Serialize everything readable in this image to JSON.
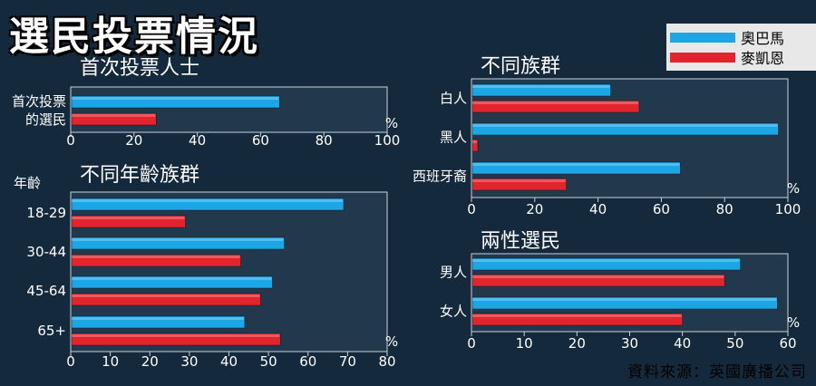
{
  "title": "選民投票情況",
  "legend": [
    {
      "name": "奧巴馬",
      "color": "#1ca6e6"
    },
    {
      "name": "麥凱恩",
      "color": "#e2242c"
    }
  ],
  "source": "資料來源：英國廣播公司",
  "chart_data": [
    {
      "type": "bar",
      "orientation": "horizontal",
      "title": "首次投票人士",
      "categories": [
        "首次投票\n的選民"
      ],
      "series": [
        {
          "name": "奧巴馬",
          "values": [
            66
          ]
        },
        {
          "name": "麥凱恩",
          "values": [
            27
          ]
        }
      ],
      "xlim": [
        0,
        100
      ],
      "ticks": [
        0,
        20,
        40,
        60,
        80,
        100
      ],
      "unit": "%"
    },
    {
      "type": "bar",
      "orientation": "horizontal",
      "title": "不同年齡族群",
      "ylabel": "年齡",
      "categories": [
        "18-29",
        "30-44",
        "45-64",
        "65+"
      ],
      "series": [
        {
          "name": "奧巴馬",
          "values": [
            69,
            54,
            51,
            44
          ]
        },
        {
          "name": "麥凱恩",
          "values": [
            29,
            43,
            48,
            53
          ]
        }
      ],
      "xlim": [
        0,
        80
      ],
      "ticks": [
        0,
        10,
        20,
        30,
        40,
        50,
        60,
        70,
        80
      ],
      "unit": "%"
    },
    {
      "type": "bar",
      "orientation": "horizontal",
      "title": "不同族群",
      "categories": [
        "白人",
        "黑人",
        "西班牙裔"
      ],
      "series": [
        {
          "name": "奧巴馬",
          "values": [
            44,
            97,
            66
          ]
        },
        {
          "name": "麥凱恩",
          "values": [
            53,
            2,
            30
          ]
        }
      ],
      "xlim": [
        0,
        100
      ],
      "ticks": [
        0,
        20,
        40,
        60,
        80,
        100
      ],
      "unit": "%"
    },
    {
      "type": "bar",
      "orientation": "horizontal",
      "title": "兩性選民",
      "categories": [
        "男人",
        "女人"
      ],
      "series": [
        {
          "name": "奧巴馬",
          "values": [
            51,
            58
          ]
        },
        {
          "name": "麥凱恩",
          "values": [
            48,
            40
          ]
        }
      ],
      "xlim": [
        0,
        60
      ],
      "ticks": [
        0,
        10,
        20,
        30,
        40,
        50,
        60
      ],
      "unit": "%"
    }
  ]
}
